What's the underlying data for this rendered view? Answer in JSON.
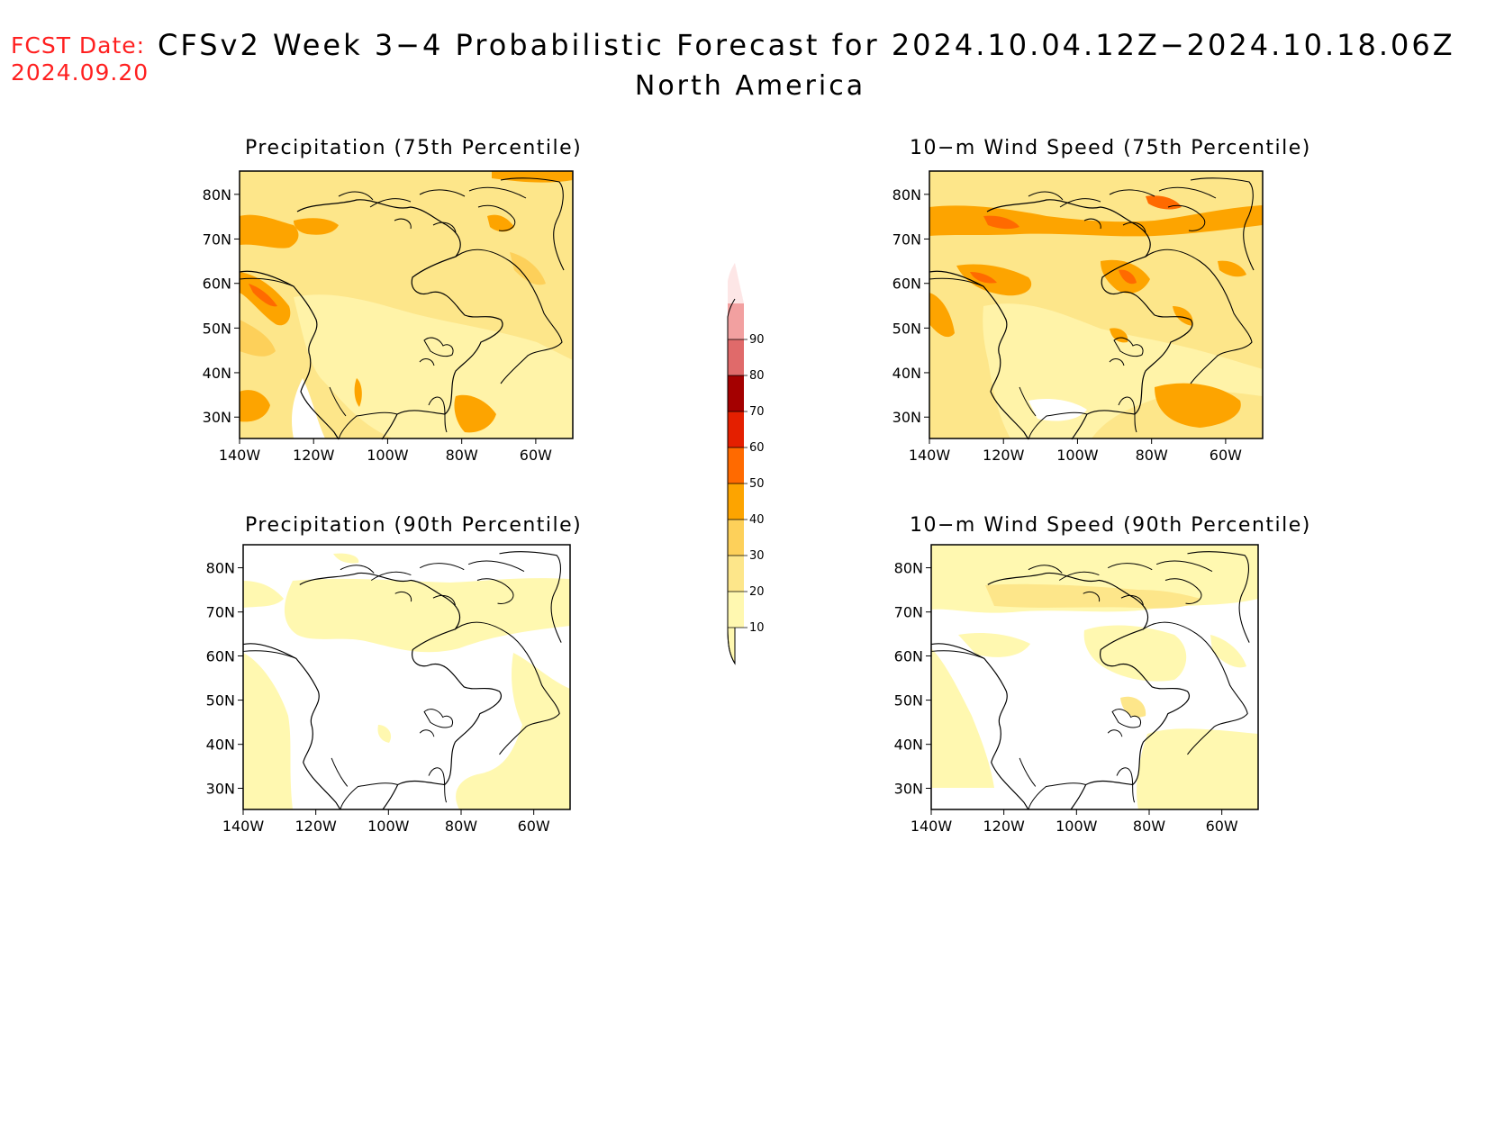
{
  "header": {
    "fcst_label": "FCST Date:",
    "fcst_date": "2024.09.20",
    "title": "CFSv2 Week 3−4 Probabilistic Forecast for 2024.10.04.12Z−2024.10.18.06Z",
    "region": "North America"
  },
  "panels": [
    {
      "id": "precip75",
      "title": "Precipitation (75th Percentile)"
    },
    {
      "id": "wind75",
      "title": "10−m Wind Speed (75th Percentile)"
    },
    {
      "id": "precip90",
      "title": "Precipitation (90th Percentile)"
    },
    {
      "id": "wind90",
      "title": "10−m Wind Speed (90th Percentile)"
    }
  ],
  "axes": {
    "lat_labels": [
      "80N",
      "70N",
      "60N",
      "50N",
      "40N",
      "30N"
    ],
    "lon_labels": [
      "140W",
      "120W",
      "100W",
      "80W",
      "60W"
    ]
  },
  "colorbar": {
    "levels": [
      "10",
      "20",
      "30",
      "40",
      "50",
      "60",
      "70",
      "80",
      "90"
    ],
    "colors": [
      "#fff8b0",
      "#fde68a",
      "#fdd05a",
      "#fda400",
      "#ff6a00",
      "#e41f00",
      "#a40000",
      "#e06a6a",
      "#f2a0a0",
      "#fde6e6"
    ]
  }
}
